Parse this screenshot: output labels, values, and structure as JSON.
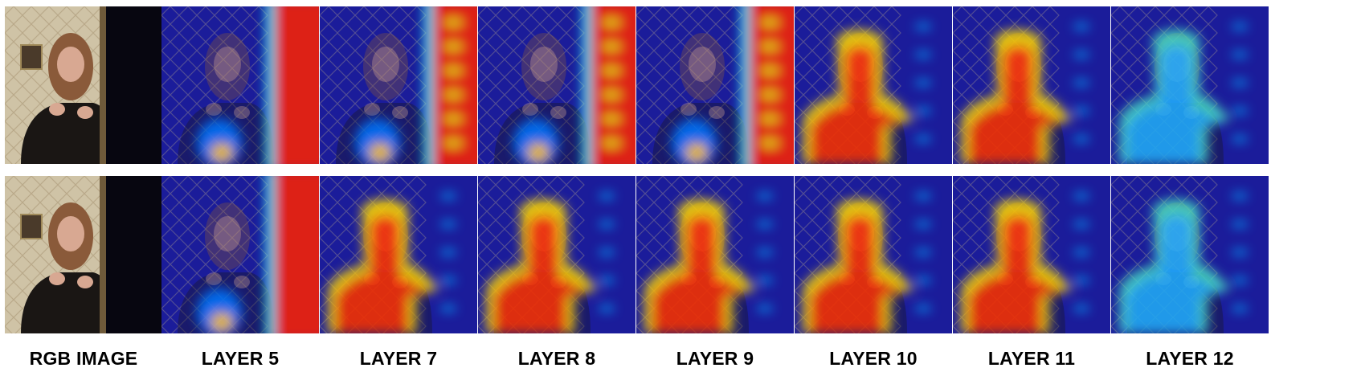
{
  "figure": {
    "columns": [
      {
        "label": "RGB IMAGE",
        "kind": "rgb"
      },
      {
        "label": "LAYER 5",
        "kind": "heatmap",
        "pattern": "right-band"
      },
      {
        "label": "LAYER 7",
        "kind": "heatmap",
        "pattern": "right-band-dots"
      },
      {
        "label": "LAYER 8",
        "kind": "heatmap",
        "pattern": "right-band-dots"
      },
      {
        "label": "LAYER 9",
        "kind": "heatmap",
        "pattern": "right-band-dots"
      },
      {
        "label": "LAYER 10",
        "kind": "heatmap",
        "pattern": "person"
      },
      {
        "label": "LAYER 11",
        "kind": "heatmap",
        "pattern": "person"
      },
      {
        "label": "LAYER 12",
        "kind": "heatmap",
        "pattern": "person-faint"
      }
    ],
    "rows": 2,
    "colormap": [
      "#00007f",
      "#0000ff",
      "#00ffff",
      "#ffff00",
      "#ff0000",
      "#7f0000"
    ]
  }
}
